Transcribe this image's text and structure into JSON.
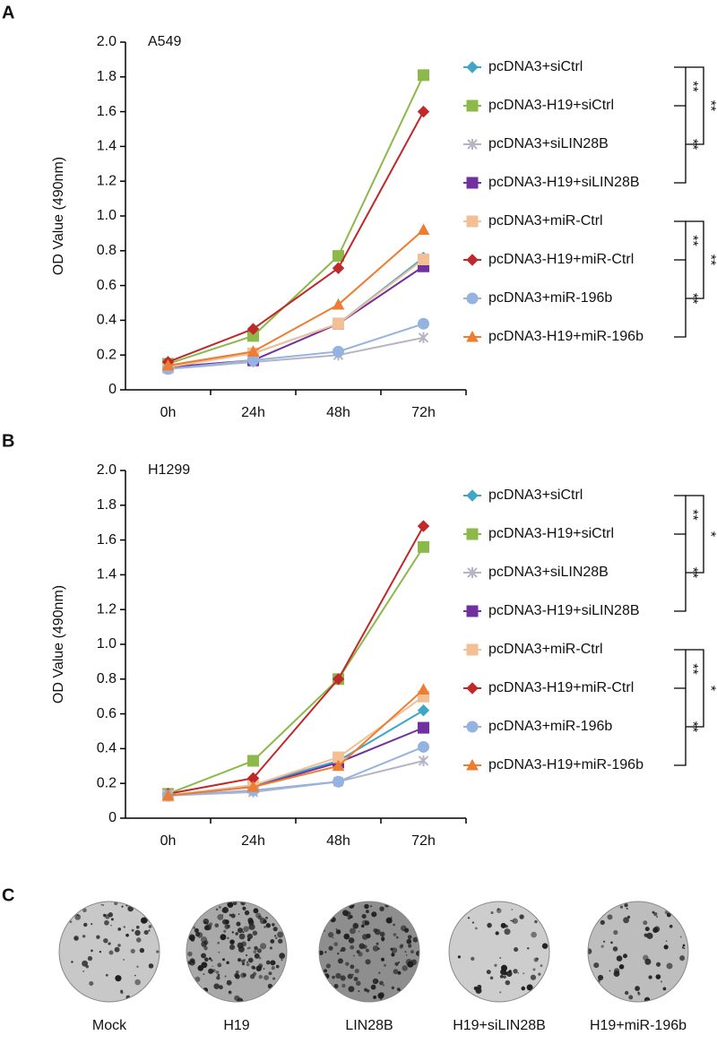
{
  "chart_data": [
    {
      "type": "line",
      "panel_label": "A",
      "title": "A549",
      "y_label": "OD Value (490nm)",
      "categories": [
        "0h",
        "24h",
        "48h",
        "72h"
      ],
      "ylim": [
        0,
        2
      ],
      "yticks": [
        0,
        0.2,
        0.4,
        0.6,
        0.8,
        {
          "value": 1,
          "label": "1.0"
        },
        1.2,
        1.4,
        1.6,
        1.8,
        {
          "value": 2,
          "label": "2.0"
        }
      ],
      "series": [
        {
          "name": "pcDNA3+siCtrl",
          "color": "#3fa6c8",
          "marker": "diamond",
          "values": [
            0.14,
            0.21,
            0.38,
            0.76
          ]
        },
        {
          "name": "pcDNA3-H19+siCtrl",
          "color": "#8db84a",
          "marker": "square",
          "values": [
            0.15,
            0.31,
            0.77,
            1.81
          ]
        },
        {
          "name": "pcDNA3+siLIN28B",
          "color": "#b4b4c4",
          "marker": "star",
          "values": [
            0.12,
            0.16,
            0.2,
            0.3
          ]
        },
        {
          "name": "pcDNA3-H19+siLIN28B",
          "color": "#7030a0",
          "marker": "square",
          "values": [
            0.13,
            0.17,
            0.38,
            0.71
          ]
        },
        {
          "name": "pcDNA3+miR-Ctrl",
          "color": "#f3bf94",
          "marker": "square",
          "values": [
            0.13,
            0.21,
            0.38,
            0.75
          ]
        },
        {
          "name": "pcDNA3-H19+miR-Ctrl",
          "color": "#c0282a",
          "marker": "diamond",
          "values": [
            0.16,
            0.35,
            0.7,
            1.6
          ]
        },
        {
          "name": "pcDNA3+miR-196b",
          "color": "#94b3e0",
          "marker": "circle",
          "values": [
            0.12,
            0.17,
            0.22,
            0.38
          ]
        },
        {
          "name": "pcDNA3-H19+miR-196b",
          "color": "#ed7d31",
          "marker": "triangle",
          "values": [
            0.14,
            0.22,
            0.49,
            0.92
          ]
        }
      ],
      "annotations": [
        "**",
        "**",
        "**",
        "**",
        "**",
        "**"
      ]
    },
    {
      "type": "line",
      "panel_label": "B",
      "title": "H1299",
      "y_label": "OD Value (490nm)",
      "categories": [
        "0h",
        "24h",
        "48h",
        "72h"
      ],
      "ylim": [
        0,
        2
      ],
      "yticks": [
        0,
        0.2,
        0.4,
        0.6,
        0.8,
        {
          "value": 1,
          "label": "1.0"
        },
        1.2,
        1.4,
        1.6,
        1.8,
        {
          "value": 2,
          "label": "2.0"
        }
      ],
      "series": [
        {
          "name": "pcDNA3+siCtrl",
          "color": "#3fa6c8",
          "marker": "diamond",
          "values": [
            0.13,
            0.19,
            0.33,
            0.62
          ]
        },
        {
          "name": "pcDNA3-H19+siCtrl",
          "color": "#8db84a",
          "marker": "square",
          "values": [
            0.14,
            0.33,
            0.8,
            1.56
          ]
        },
        {
          "name": "pcDNA3+siLIN28B",
          "color": "#b4b4c4",
          "marker": "star",
          "values": [
            0.13,
            0.15,
            0.21,
            0.33
          ]
        },
        {
          "name": "pcDNA3-H19+siLIN28B",
          "color": "#7030a0",
          "marker": "square",
          "values": [
            0.13,
            0.18,
            0.32,
            0.52
          ]
        },
        {
          "name": "pcDNA3+miR-Ctrl",
          "color": "#f3bf94",
          "marker": "square",
          "values": [
            0.13,
            0.19,
            0.35,
            0.7
          ]
        },
        {
          "name": "pcDNA3-H19+miR-Ctrl",
          "color": "#c0282a",
          "marker": "diamond",
          "values": [
            0.14,
            0.23,
            0.8,
            1.68
          ]
        },
        {
          "name": "pcDNA3+miR-196b",
          "color": "#94b3e0",
          "marker": "circle",
          "values": [
            0.13,
            0.16,
            0.21,
            0.41
          ]
        },
        {
          "name": "pcDNA3-H19+miR-196b",
          "color": "#ed7d31",
          "marker": "triangle",
          "values": [
            0.13,
            0.18,
            0.3,
            0.74
          ]
        }
      ],
      "annotations": [
        "**",
        "**",
        "*",
        "**",
        "**",
        "*"
      ]
    }
  ],
  "panel_c": {
    "panel_label": "C",
    "captions": [
      "Mock",
      "H19",
      "LIN28B",
      "H19+siLIN28B",
      "H19+miR-196b"
    ]
  }
}
